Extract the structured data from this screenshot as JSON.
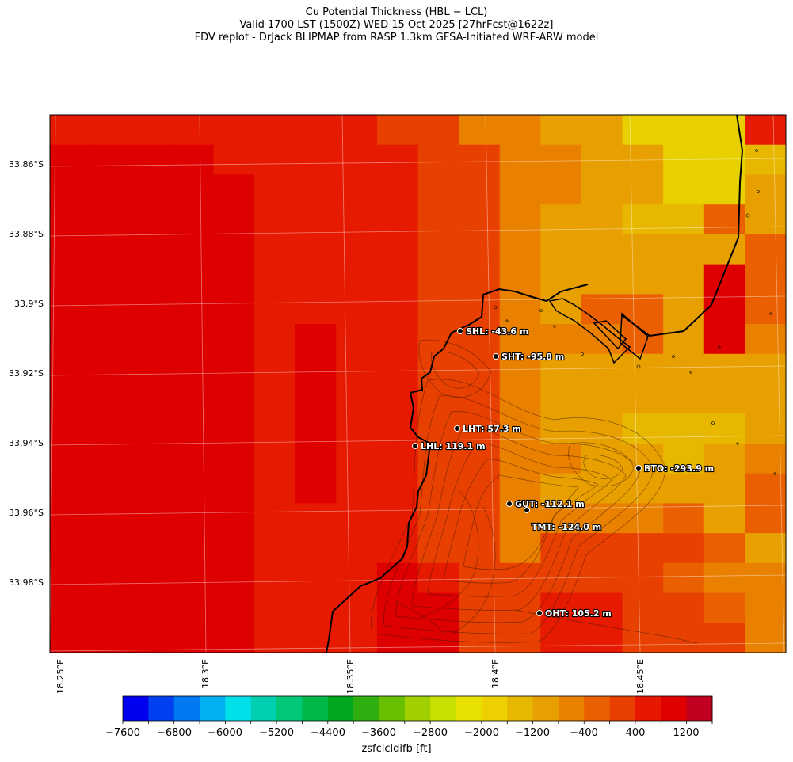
{
  "title_lines": [
    "Cu Potential Thickness (HBL − LCL)",
    "Valid 1700 LST (1500Z) WED 15 Oct 2025 [27hrFcst@1622z]",
    "FDV replot - DrJack BLIPMAP from RASP 1.3km GFSA-Initiated WRF-ARW model"
  ],
  "y_ticks": [
    "33.86°S",
    "33.88°S",
    "33.9°S",
    "33.92°S",
    "33.94°S",
    "33.96°S",
    "33.98°S"
  ],
  "x_ticks": [
    "18.25°E",
    "18.3°E",
    "18.35°E",
    "18.4°E",
    "18.45°E"
  ],
  "stations": [
    {
      "code": "SHL",
      "label": "SHL: -43.6 m"
    },
    {
      "code": "SHT",
      "label": "SHT: -95.8 m"
    },
    {
      "code": "LHT",
      "label": "LHT: 57.3 m"
    },
    {
      "code": "LHL",
      "label": "LHL: 119.1 m"
    },
    {
      "code": "BTO",
      "label": "BTO: -293.9 m"
    },
    {
      "code": "GUT",
      "label": "GUT: -112.1 m"
    },
    {
      "code": "TMT",
      "label": "TMT: -124.0 m"
    },
    {
      "code": "OHT",
      "label": "OHT: 105.2 m"
    }
  ],
  "colorbar": {
    "label": "zsfclcldifb [ft]",
    "ticks": [
      "−7600",
      "−6800",
      "−6000",
      "−5200",
      "−4400",
      "−3600",
      "−2800",
      "−2000",
      "−1200",
      "−400",
      "400",
      "1200"
    ],
    "colors": [
      "#0000f0",
      "#0040f0",
      "#0078f0",
      "#00b0f0",
      "#00e0e8",
      "#00d0b0",
      "#00c878",
      "#00b848",
      "#00a820",
      "#30b010",
      "#68c000",
      "#a0d000",
      "#c8e000",
      "#e8e000",
      "#ecd000",
      "#e8b800",
      "#e8a000",
      "#e88000",
      "#e86000",
      "#e84000",
      "#e81800",
      "#e00000",
      "#c00020"
    ]
  },
  "field": {
    "colors": {
      "R": "#de0000",
      "r": "#e61a00",
      "O": "#e84000",
      "o": "#ea6000",
      "a": "#ea8000",
      "b": "#e8a000",
      "y": "#e8b800",
      "Y": "#e8d000"
    },
    "grid": [
      "rrrrrrrrOOaabbYYYr",
      "RRRRrrrrrOOaabbYYy",
      "RRRRRrrrrOOaabbYYb",
      "RRRRRrrrrOOabbyyob",
      "RRRRRrrrrOOabbbbbo",
      "RRRRRrrrrOOabbbbRo",
      "RRRRRrrrrOOaboobRo",
      "RRRRRrRrrOOaaaobRa",
      "RRRRRrRrrOOabbbbbb",
      "RRRRRrRrrOOabbbbbb",
      "RRRRRrRrrOOabbyyyb",
      "RRRRRrRrrOOaabbyba",
      "RRRRRrRrrOOabbbbbo",
      "RRRRRrrrrOOaaaaobo",
      "RRRRRrrrrOOaOOOOob",
      "RRRRRrrrRrOOOOOoaa",
      "RRRRRrrrRROOrrOOoa",
      "RRRRRrrrRROOrrOOOa"
    ]
  }
}
